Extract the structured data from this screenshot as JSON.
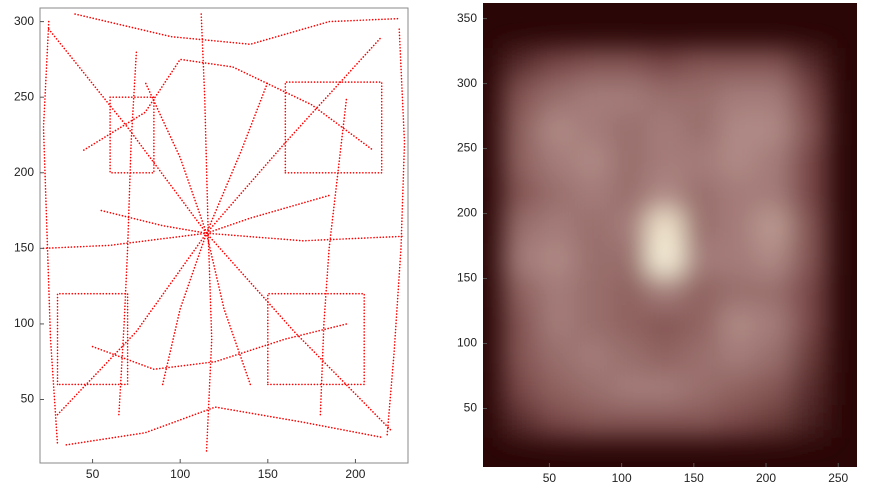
{
  "chart_data": [
    {
      "type": "line",
      "color": "#ff0000",
      "xlim": [
        20,
        230
      ],
      "ylim": [
        8,
        309
      ],
      "xticks": [
        50,
        100,
        150,
        200
      ],
      "yticks": [
        50,
        100,
        150,
        200,
        250,
        300
      ],
      "series": [
        {
          "x": [
            22,
            60,
            115,
            170,
            228
          ],
          "y": [
            150,
            152,
            160,
            155,
            158
          ]
        },
        {
          "x": [
            112,
            114,
            116,
            118,
            115
          ],
          "y": [
            305,
            250,
            160,
            90,
            15
          ]
        },
        {
          "x": [
            30,
            75,
            115,
            160,
            215
          ],
          "y": [
            40,
            95,
            160,
            220,
            290
          ]
        },
        {
          "x": [
            25,
            70,
            115,
            165,
            220
          ],
          "y": [
            295,
            230,
            160,
            95,
            30
          ]
        },
        {
          "x": [
            60,
            60,
            85,
            85,
            60
          ],
          "y": [
            250,
            200,
            200,
            250,
            250
          ]
        },
        {
          "x": [
            30,
            30,
            70,
            70,
            30
          ],
          "y": [
            60,
            120,
            120,
            60,
            60
          ]
        },
        {
          "x": [
            150,
            205,
            205,
            150,
            150
          ],
          "y": [
            60,
            60,
            120,
            120,
            60
          ]
        },
        {
          "x": [
            160,
            215,
            215,
            160,
            160
          ],
          "y": [
            200,
            200,
            260,
            260,
            200
          ]
        },
        {
          "x": [
            40,
            95,
            140,
            185,
            225
          ],
          "y": [
            305,
            290,
            285,
            300,
            302
          ]
        },
        {
          "x": [
            25,
            22,
            24,
            26,
            30
          ],
          "y": [
            300,
            230,
            160,
            90,
            20
          ]
        },
        {
          "x": [
            225,
            228,
            226,
            222,
            218
          ],
          "y": [
            295,
            220,
            150,
            80,
            25
          ]
        },
        {
          "x": [
            35,
            80,
            120,
            170,
            215
          ],
          "y": [
            20,
            28,
            45,
            35,
            25
          ]
        },
        {
          "x": [
            55,
            90,
            115,
            140,
            185
          ],
          "y": [
            175,
            165,
            160,
            170,
            185
          ]
        },
        {
          "x": [
            90,
            100,
            115,
            135,
            150
          ],
          "y": [
            60,
            110,
            160,
            215,
            260
          ]
        },
        {
          "x": [
            140,
            125,
            115,
            100,
            80
          ],
          "y": [
            60,
            110,
            160,
            210,
            260
          ]
        },
        {
          "x": [
            45,
            80,
            100,
            130,
            175,
            210
          ],
          "y": [
            215,
            240,
            275,
            270,
            245,
            215
          ]
        },
        {
          "x": [
            50,
            85,
            120,
            160,
            195
          ],
          "y": [
            85,
            70,
            75,
            90,
            100
          ]
        },
        {
          "x": [
            180,
            182,
            185,
            190,
            195
          ],
          "y": [
            40,
            100,
            150,
            200,
            250
          ]
        },
        {
          "x": [
            65,
            68,
            70,
            72,
            75
          ],
          "y": [
            40,
            100,
            150,
            220,
            280
          ]
        }
      ]
    },
    {
      "type": "heatmap",
      "xlim": [
        4,
        263
      ],
      "ylim": [
        5,
        362
      ],
      "xticks": [
        50,
        100,
        150,
        200,
        250
      ],
      "yticks": [
        50,
        100,
        150,
        200,
        250,
        300,
        350
      ],
      "x": [
        30,
        55,
        80,
        105,
        130,
        155,
        180,
        205,
        230
      ],
      "y": [
        40,
        65,
        90,
        115,
        140,
        165,
        190,
        215,
        240,
        265,
        290,
        315
      ],
      "zlim": [
        0,
        1
      ],
      "colormap": [
        "#2a0606",
        "#7a4a48",
        "#b08a86",
        "#f0e0c8",
        "#ffffe8"
      ],
      "values": [
        [
          0.15,
          0.25,
          0.3,
          0.3,
          0.3,
          0.3,
          0.25,
          0.2,
          0.1
        ],
        [
          0.25,
          0.35,
          0.4,
          0.45,
          0.45,
          0.4,
          0.35,
          0.3,
          0.15
        ],
        [
          0.3,
          0.4,
          0.45,
          0.4,
          0.35,
          0.4,
          0.45,
          0.4,
          0.2
        ],
        [
          0.3,
          0.45,
          0.4,
          0.35,
          0.3,
          0.35,
          0.5,
          0.45,
          0.25
        ],
        [
          0.35,
          0.45,
          0.4,
          0.35,
          0.45,
          0.35,
          0.4,
          0.4,
          0.25
        ],
        [
          0.45,
          0.5,
          0.4,
          0.4,
          0.9,
          0.45,
          0.45,
          0.5,
          0.3
        ],
        [
          0.4,
          0.45,
          0.4,
          0.45,
          0.8,
          0.4,
          0.45,
          0.55,
          0.3
        ],
        [
          0.3,
          0.4,
          0.45,
          0.4,
          0.5,
          0.4,
          0.45,
          0.45,
          0.25
        ],
        [
          0.35,
          0.45,
          0.5,
          0.4,
          0.45,
          0.45,
          0.5,
          0.45,
          0.25
        ],
        [
          0.35,
          0.5,
          0.45,
          0.4,
          0.45,
          0.4,
          0.5,
          0.5,
          0.3
        ],
        [
          0.3,
          0.4,
          0.45,
          0.45,
          0.4,
          0.4,
          0.45,
          0.45,
          0.25
        ],
        [
          0.15,
          0.25,
          0.3,
          0.3,
          0.25,
          0.3,
          0.3,
          0.3,
          0.15
        ]
      ]
    }
  ]
}
